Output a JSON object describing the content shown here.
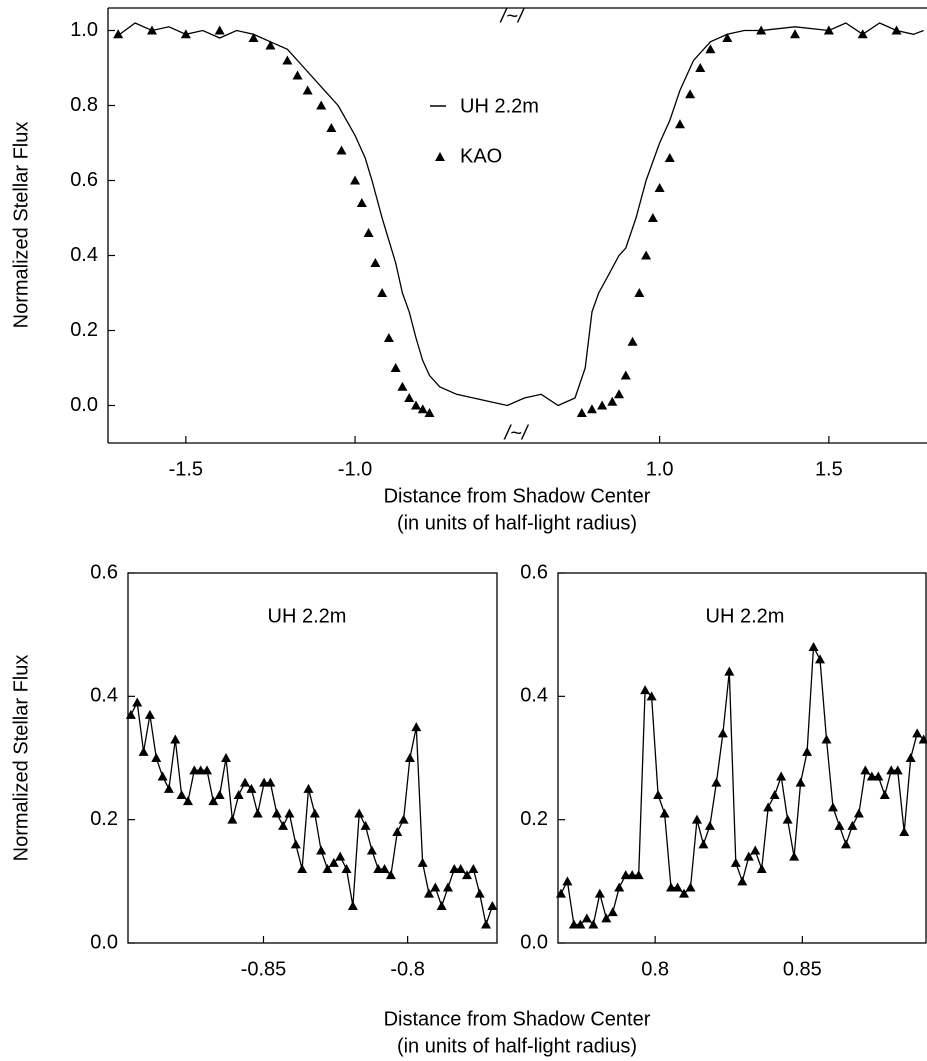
{
  "chart_data": [
    {
      "type": "line",
      "ylabel": "Normalized Stellar Flux",
      "xlabel": [
        "Distance from Shadow Center",
        "(in units of half-light radius)"
      ],
      "break_label": "/~/",
      "axis_break": [
        -0.55,
        0.55
      ],
      "xlim": [
        -1.73,
        1.79
      ],
      "ylim": [
        -0.1,
        1.06
      ],
      "xticks": [
        -1.5,
        {
          "value": -1,
          "label": "-1.0"
        },
        {
          "value": 1,
          "label": "1.0"
        },
        1.5
      ],
      "yticks": [
        {
          "value": 0,
          "label": "0.0"
        },
        0.2,
        0.4,
        0.6,
        0.8,
        {
          "value": 1,
          "label": "1.0"
        }
      ],
      "series": [
        {
          "name": "UH 2.2m",
          "style": "line",
          "color": "#000000",
          "x": [
            -1.71,
            -1.68,
            -1.65,
            -1.6,
            -1.55,
            -1.5,
            -1.45,
            -1.4,
            -1.35,
            -1.3,
            -1.25,
            -1.2,
            -1.15,
            -1.1,
            -1.05,
            -1.0,
            -0.97,
            -0.95,
            -0.92,
            -0.9,
            -0.88,
            -0.86,
            -0.84,
            -0.82,
            -0.8,
            -0.78,
            -0.75,
            -0.7,
            -0.65,
            -0.6,
            -0.55,
            0.55,
            0.6,
            0.65,
            0.7,
            0.75,
            0.78,
            0.8,
            0.82,
            0.85,
            0.88,
            0.9,
            0.93,
            0.96,
            1.0,
            1.03,
            1.06,
            1.1,
            1.15,
            1.2,
            1.25,
            1.3,
            1.4,
            1.5,
            1.55,
            1.6,
            1.65,
            1.7,
            1.75,
            1.78
          ],
          "values": [
            0.98,
            1.0,
            1.02,
            1.0,
            1.01,
            0.99,
            1.0,
            0.98,
            1.0,
            0.99,
            0.97,
            0.95,
            0.9,
            0.85,
            0.8,
            0.72,
            0.66,
            0.6,
            0.5,
            0.44,
            0.38,
            0.3,
            0.25,
            0.18,
            0.12,
            0.08,
            0.05,
            0.03,
            0.02,
            0.01,
            0.0,
            0.0,
            0.02,
            0.03,
            0.0,
            0.02,
            0.1,
            0.25,
            0.3,
            0.35,
            0.4,
            0.42,
            0.5,
            0.6,
            0.7,
            0.76,
            0.84,
            0.92,
            0.97,
            0.99,
            1.0,
            1.0,
            1.01,
            1.0,
            1.02,
            0.99,
            1.02,
            1.0,
            0.99,
            1.0
          ]
        },
        {
          "name": "KAO",
          "style": "marker",
          "color": "#000000",
          "x": [
            -1.7,
            -1.6,
            -1.5,
            -1.4,
            -1.3,
            -1.25,
            -1.2,
            -1.17,
            -1.14,
            -1.1,
            -1.07,
            -1.04,
            -1.0,
            -0.98,
            -0.96,
            -0.94,
            -0.92,
            -0.9,
            -0.88,
            -0.86,
            -0.84,
            -0.82,
            -0.8,
            -0.78,
            0.77,
            0.8,
            0.83,
            0.86,
            0.88,
            0.9,
            0.92,
            0.94,
            0.96,
            0.98,
            1.0,
            1.03,
            1.06,
            1.09,
            1.12,
            1.15,
            1.2,
            1.3,
            1.4,
            1.5,
            1.6,
            1.7
          ],
          "values": [
            0.99,
            1.0,
            0.99,
            1.0,
            0.98,
            0.96,
            0.92,
            0.88,
            0.84,
            0.8,
            0.74,
            0.68,
            0.6,
            0.54,
            0.46,
            0.38,
            0.3,
            0.18,
            0.1,
            0.05,
            0.02,
            0.0,
            -0.01,
            -0.02,
            -0.02,
            -0.01,
            0.0,
            0.01,
            0.03,
            0.08,
            0.17,
            0.3,
            0.4,
            0.5,
            0.58,
            0.66,
            0.75,
            0.83,
            0.9,
            0.95,
            0.98,
            1.0,
            0.99,
            1.0,
            0.99,
            1.0
          ]
        }
      ]
    },
    {
      "type": "line",
      "title": "UH 2.2m",
      "ylabel": "Normalized Stellar Flux",
      "xlabel": [
        "Distance from Shadow Center",
        "(in units of half-light radius)"
      ],
      "xlim": [
        -0.897,
        -0.769
      ],
      "ylim": [
        0,
        0.6
      ],
      "xticks": [
        -0.85,
        -0.8
      ],
      "yticks": [
        {
          "value": 0,
          "label": "0.0"
        },
        0.2,
        0.4,
        0.6
      ],
      "series": [
        {
          "style": "line+marker",
          "color": "#000000",
          "x": [
            -0.896,
            -0.8938,
            -0.8916,
            -0.8894,
            -0.8872,
            -0.885,
            -0.8828,
            -0.8806,
            -0.8784,
            -0.8762,
            -0.874,
            -0.8718,
            -0.8696,
            -0.8674,
            -0.8652,
            -0.863,
            -0.8608,
            -0.8586,
            -0.8564,
            -0.8542,
            -0.852,
            -0.8498,
            -0.8476,
            -0.8454,
            -0.8432,
            -0.841,
            -0.8388,
            -0.8366,
            -0.8344,
            -0.8322,
            -0.83,
            -0.8278,
            -0.8256,
            -0.8234,
            -0.8212,
            -0.819,
            -0.8168,
            -0.8146,
            -0.8124,
            -0.8102,
            -0.808,
            -0.8058,
            -0.8036,
            -0.8014,
            -0.7992,
            -0.797,
            -0.7948,
            -0.7926,
            -0.7904,
            -0.7882,
            -0.786,
            -0.7838,
            -0.7816,
            -0.7794,
            -0.7772,
            -0.775,
            -0.7728,
            -0.7706
          ],
          "values": [
            0.37,
            0.39,
            0.31,
            0.37,
            0.3,
            0.27,
            0.25,
            0.33,
            0.24,
            0.23,
            0.28,
            0.28,
            0.28,
            0.23,
            0.24,
            0.3,
            0.2,
            0.24,
            0.26,
            0.25,
            0.21,
            0.26,
            0.26,
            0.21,
            0.19,
            0.21,
            0.16,
            0.12,
            0.25,
            0.21,
            0.15,
            0.12,
            0.13,
            0.14,
            0.12,
            0.06,
            0.21,
            0.19,
            0.15,
            0.12,
            0.12,
            0.11,
            0.18,
            0.2,
            0.3,
            0.35,
            0.13,
            0.08,
            0.09,
            0.06,
            0.09,
            0.12,
            0.12,
            0.11,
            0.12,
            0.08,
            0.03,
            0.06
          ]
        }
      ]
    },
    {
      "type": "line",
      "title": "UH 2.2m",
      "xlim": [
        0.767,
        0.892
      ],
      "ylim": [
        0,
        0.6
      ],
      "xticks": [
        0.8,
        0.85
      ],
      "yticks": [
        {
          "value": 0,
          "label": "0.0"
        },
        0.2,
        0.4,
        0.6
      ],
      "series": [
        {
          "style": "line+marker",
          "color": "#000000",
          "x": [
            0.768,
            0.7702,
            0.7724,
            0.7746,
            0.7768,
            0.779,
            0.7812,
            0.7834,
            0.7856,
            0.7878,
            0.79,
            0.7922,
            0.7944,
            0.7966,
            0.7988,
            0.801,
            0.8032,
            0.8054,
            0.8076,
            0.8098,
            0.812,
            0.8142,
            0.8164,
            0.8186,
            0.8208,
            0.823,
            0.8252,
            0.8274,
            0.8296,
            0.8318,
            0.834,
            0.8362,
            0.8384,
            0.8406,
            0.8428,
            0.845,
            0.8472,
            0.8494,
            0.8516,
            0.8538,
            0.856,
            0.8582,
            0.8604,
            0.8626,
            0.8648,
            0.867,
            0.8692,
            0.8714,
            0.8736,
            0.8758,
            0.878,
            0.8802,
            0.8824,
            0.8846,
            0.8868,
            0.889,
            0.8912
          ],
          "values": [
            0.08,
            0.1,
            0.03,
            0.03,
            0.04,
            0.03,
            0.08,
            0.04,
            0.05,
            0.09,
            0.11,
            0.11,
            0.11,
            0.41,
            0.4,
            0.24,
            0.21,
            0.09,
            0.09,
            0.08,
            0.09,
            0.2,
            0.16,
            0.19,
            0.26,
            0.34,
            0.44,
            0.13,
            0.1,
            0.14,
            0.15,
            0.12,
            0.22,
            0.24,
            0.27,
            0.2,
            0.14,
            0.26,
            0.31,
            0.48,
            0.46,
            0.33,
            0.22,
            0.19,
            0.16,
            0.19,
            0.21,
            0.28,
            0.27,
            0.27,
            0.24,
            0.28,
            0.28,
            0.18,
            0.3,
            0.34,
            0.33
          ]
        }
      ]
    }
  ]
}
